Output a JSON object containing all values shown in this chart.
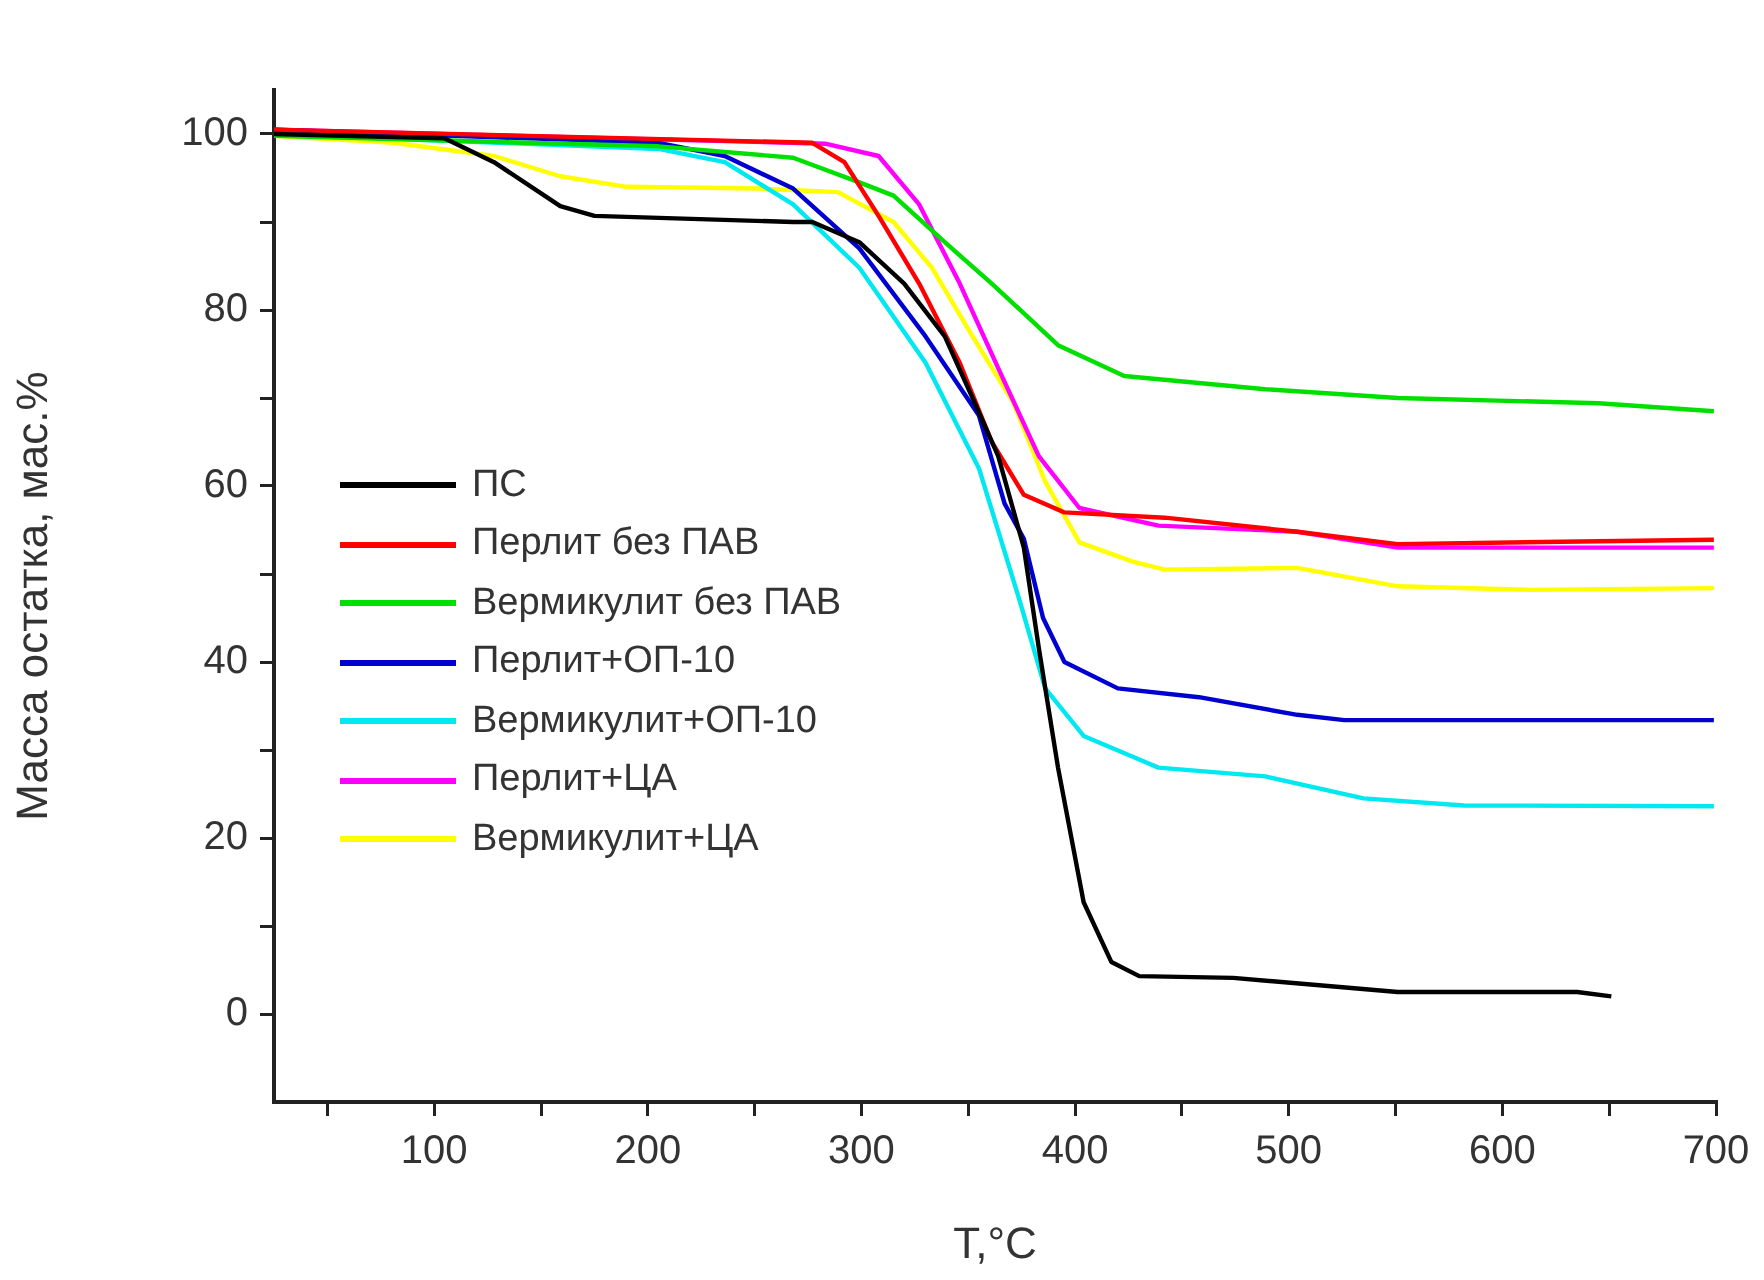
{
  "chart_data": {
    "type": "line",
    "xlabel": "T,°C",
    "ylabel": "Масса остатка, мас.%",
    "xlim": [
      25,
      700
    ],
    "ylim": [
      -10,
      105
    ],
    "xticks": [
      {
        "value": 50,
        "label": null
      },
      100,
      {
        "value": 150,
        "label": null
      },
      200,
      {
        "value": 250,
        "label": null
      },
      300,
      {
        "value": 350,
        "label": null
      },
      400,
      {
        "value": 450,
        "label": null
      },
      500,
      {
        "value": 550,
        "label": null
      },
      600,
      {
        "value": 650,
        "label": null
      },
      700
    ],
    "yticks": [
      0,
      {
        "value": 10,
        "label": null
      },
      20,
      {
        "value": 30,
        "label": null
      },
      40,
      {
        "value": 50,
        "label": null
      },
      60,
      {
        "value": 70,
        "label": null
      },
      80,
      {
        "value": 90,
        "label": null
      },
      100
    ],
    "grid": false,
    "legend": "left",
    "marker": "none",
    "line_style": "solid",
    "series": [
      {
        "name": "ПС",
        "color": "#000000",
        "x": [
          25,
          105,
          128,
          159,
          175,
          268,
          277,
          299,
          320,
          339,
          352,
          364,
          376,
          383,
          392,
          404,
          417,
          430,
          474,
          551,
          635,
          651
        ],
        "values": [
          100,
          99.5,
          96.8,
          91.8,
          90.7,
          90,
          90,
          87.7,
          83,
          77,
          70,
          63.4,
          53,
          41.6,
          28,
          12.7,
          5.9,
          4.3,
          4.1,
          2.5,
          2.5,
          2
        ]
      },
      {
        "name": "Перлит без ПАВ",
        "color": "#ff0000",
        "x": [
          25,
          277,
          292,
          308,
          327,
          346,
          361,
          376,
          395,
          442,
          504,
          551,
          699
        ],
        "values": [
          100.5,
          99,
          96.8,
          90.7,
          83,
          74,
          65,
          59,
          57,
          56.4,
          54.8,
          53.4,
          53.9
        ]
      },
      {
        "name": "Вермикулит без ПАВ",
        "color": "#00e000",
        "x": [
          25,
          205,
          268,
          299,
          315,
          339,
          361,
          392,
          423,
          489,
          551,
          645,
          699
        ],
        "values": [
          99.8,
          98.6,
          97.3,
          94.5,
          93,
          87.7,
          83,
          76,
          72.5,
          71,
          70,
          69.4,
          68.5
        ]
      },
      {
        "name": "Перлит+ОП-10",
        "color": "#0000d0",
        "x": [
          25,
          205,
          236,
          268,
          299,
          330,
          355,
          367,
          376,
          385,
          395,
          420,
          458,
          504,
          526,
          699
        ],
        "values": [
          100.5,
          99,
          97.5,
          93.8,
          87,
          77,
          68,
          58,
          54,
          45,
          40,
          37,
          36,
          34,
          33.4,
          33.4
        ]
      },
      {
        "name": "Вермикулит+ОП-10",
        "color": "#00e8f0",
        "x": [
          25,
          205,
          236,
          268,
          299,
          330,
          355,
          374,
          386,
          404,
          439,
          489,
          535,
          582,
          699
        ],
        "values": [
          100,
          98.3,
          96.8,
          92,
          84.8,
          74,
          62,
          47,
          37,
          31.6,
          28,
          27,
          24.5,
          23.7,
          23.6
        ]
      },
      {
        "name": "Перлит+ЦА",
        "color": "#ff00ff",
        "x": [
          25,
          283,
          308,
          327,
          346,
          364,
          383,
          402,
          439,
          504,
          551,
          699
        ],
        "values": [
          100.5,
          98.9,
          97.5,
          92,
          83,
          73.4,
          63.4,
          57.5,
          55.5,
          54.8,
          53,
          53
        ]
      },
      {
        "name": "Вермикулит+ЦА",
        "color": "#ffff00",
        "x": [
          25,
          81,
          128,
          159,
          190,
          252,
          289,
          315,
          333,
          352,
          371,
          386,
          402,
          427,
          442,
          504,
          551,
          614,
          699
        ],
        "values": [
          99.8,
          99,
          97.5,
          95.2,
          94,
          93.8,
          93.4,
          90,
          84.8,
          77,
          69.5,
          60.5,
          53.6,
          51.4,
          50.5,
          50.7,
          48.6,
          48.2,
          48.4
        ]
      }
    ]
  }
}
